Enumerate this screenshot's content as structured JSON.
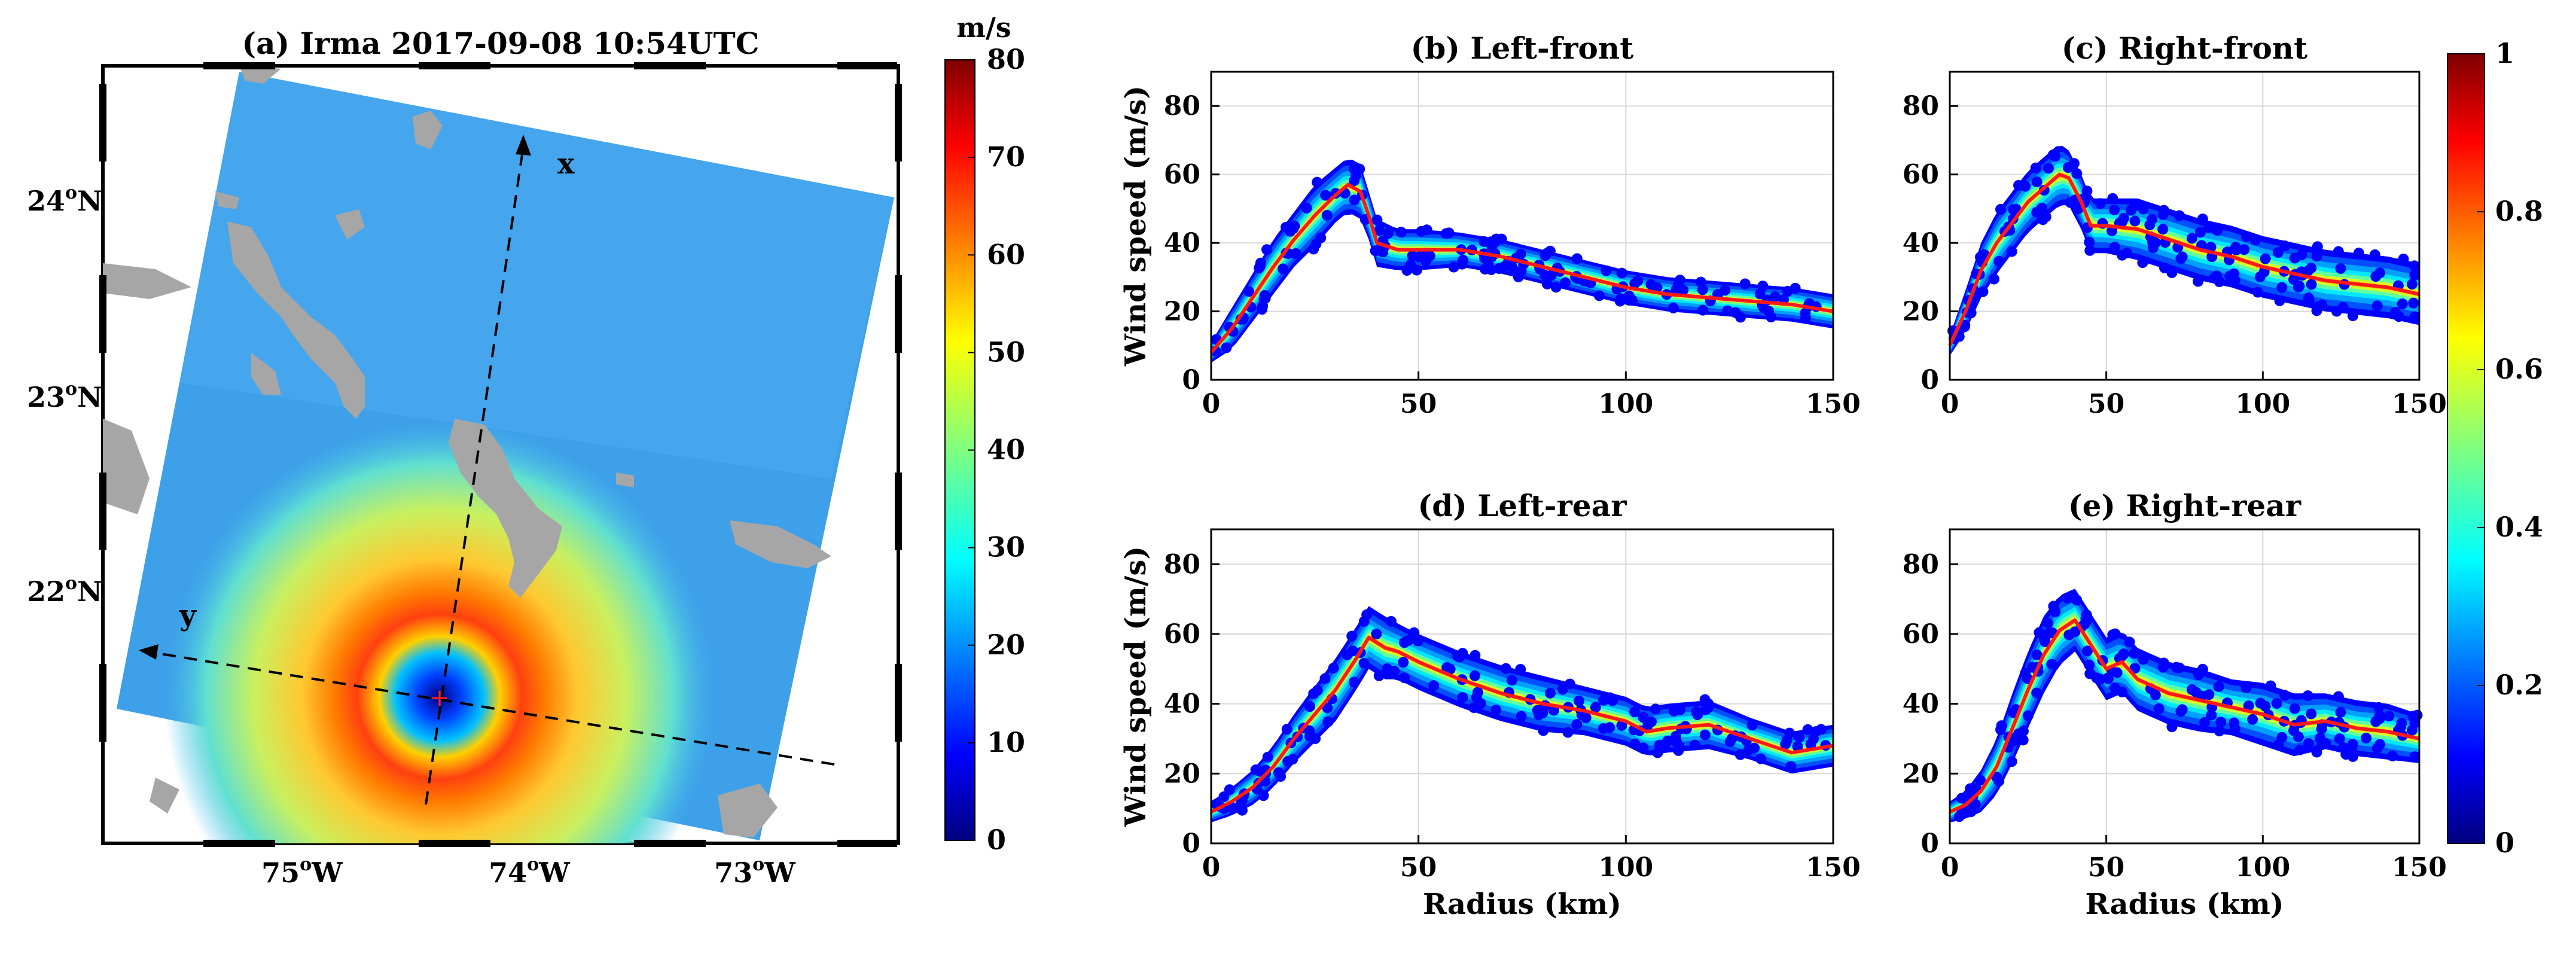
{
  "colors": {
    "jet": [
      "#00007f",
      "#0000ff",
      "#007fff",
      "#00ffff",
      "#7fff7f",
      "#ffff00",
      "#ff7f00",
      "#ff0000",
      "#7f0000"
    ],
    "mean_line": "#ff1a1a",
    "land": "#a6a6a6"
  },
  "map": {
    "title": "(a) Irma 2017-09-08 10:54UTC",
    "lat_labels": [
      {
        "deg": "24",
        "hemi": "N"
      },
      {
        "deg": "23",
        "hemi": "N"
      },
      {
        "deg": "22",
        "hemi": "N"
      }
    ],
    "lon_labels": [
      {
        "deg": "75",
        "hemi": "W"
      },
      {
        "deg": "74",
        "hemi": "W"
      },
      {
        "deg": "73",
        "hemi": "W"
      }
    ],
    "deg_symbol": "o",
    "axis_x_label": "x",
    "axis_y_label": "y",
    "colorbar": {
      "unit": "m/s",
      "ticks": [
        "0",
        "10",
        "20",
        "30",
        "40",
        "50",
        "60",
        "70",
        "80"
      ],
      "min": 0,
      "max": 80
    }
  },
  "density_colorbar": {
    "ticks": [
      "0",
      "0.2",
      "0.4",
      "0.6",
      "0.8",
      "1"
    ],
    "min": 0,
    "max": 1
  },
  "chart_data": [
    {
      "type": "scatter",
      "title": "(b) Left-front",
      "xlabel": "",
      "ylabel": "Wind speed (m/s)",
      "xlim": [
        0,
        150
      ],
      "ylim": [
        0,
        90
      ],
      "xticks": [
        "0",
        "50",
        "100",
        "150"
      ],
      "yticks": [
        "0",
        "20",
        "40",
        "60",
        "80"
      ],
      "grid": true,
      "series": [
        {
          "name": "mean",
          "x": [
            0,
            5,
            10,
            15,
            20,
            25,
            30,
            33,
            36,
            38,
            40,
            45,
            50,
            60,
            70,
            80,
            90,
            100,
            110,
            120,
            130,
            140,
            150
          ],
          "y": [
            8,
            15,
            24,
            33,
            41,
            48,
            54,
            57,
            55,
            48,
            40,
            38,
            38,
            38,
            36,
            33,
            30,
            27,
            25,
            24,
            23,
            22,
            20
          ]
        }
      ],
      "spread": [
        3,
        6,
        7,
        8,
        8,
        9,
        8,
        8,
        8,
        7,
        7,
        6,
        6,
        5,
        5,
        5,
        5,
        5,
        5,
        5,
        5,
        5,
        5
      ]
    },
    {
      "type": "scatter",
      "title": "(c) Right-front",
      "xlabel": "",
      "ylabel": "",
      "xlim": [
        0,
        150
      ],
      "ylim": [
        0,
        90
      ],
      "xticks": [
        "0",
        "50",
        "100",
        "150"
      ],
      "yticks": [
        "0",
        "20",
        "40",
        "60",
        "80"
      ],
      "grid": true,
      "series": [
        {
          "name": "mean",
          "x": [
            0,
            5,
            10,
            15,
            20,
            25,
            30,
            35,
            38,
            42,
            45,
            50,
            60,
            70,
            80,
            90,
            100,
            110,
            120,
            130,
            140,
            150
          ],
          "y": [
            10,
            20,
            32,
            40,
            46,
            52,
            56,
            60,
            59,
            52,
            45,
            45,
            44,
            41,
            38,
            36,
            33,
            31,
            29,
            28,
            27,
            25
          ]
        }
      ],
      "spread": [
        3,
        6,
        8,
        9,
        9,
        9,
        9,
        9,
        8,
        8,
        8,
        8,
        9,
        9,
        9,
        9,
        9,
        9,
        9,
        9,
        9,
        9
      ]
    },
    {
      "type": "scatter",
      "title": "(d) Left-rear",
      "xlabel": "Radius (km)",
      "ylabel": "Wind speed (m/s)",
      "xlim": [
        0,
        150
      ],
      "ylim": [
        0,
        90
      ],
      "xticks": [
        "0",
        "50",
        "100",
        "150"
      ],
      "yticks": [
        "0",
        "20",
        "40",
        "60",
        "80"
      ],
      "grid": true,
      "series": [
        {
          "name": "mean",
          "x": [
            0,
            5,
            10,
            15,
            20,
            25,
            30,
            35,
            38,
            42,
            45,
            50,
            60,
            70,
            80,
            90,
            100,
            105,
            110,
            120,
            130,
            140,
            145,
            150
          ],
          "y": [
            9,
            12,
            16,
            22,
            30,
            37,
            44,
            53,
            59,
            56,
            55,
            52,
            47,
            43,
            40,
            38,
            35,
            32,
            33,
            34,
            30,
            26,
            27,
            28
          ]
        }
      ],
      "spread": [
        3,
        4,
        5,
        6,
        7,
        8,
        9,
        9,
        9,
        9,
        8,
        8,
        8,
        8,
        8,
        7,
        7,
        7,
        7,
        7,
        6,
        6,
        6,
        6
      ]
    },
    {
      "type": "scatter",
      "title": "(e) Right-rear",
      "xlabel": "Radius (km)",
      "ylabel": "",
      "xlim": [
        0,
        150
      ],
      "ylim": [
        0,
        90
      ],
      "xticks": [
        "0",
        "50",
        "100",
        "150"
      ],
      "yticks": [
        "0",
        "20",
        "40",
        "60",
        "80"
      ],
      "grid": true,
      "series": [
        {
          "name": "mean",
          "x": [
            0,
            5,
            10,
            15,
            20,
            25,
            30,
            35,
            40,
            45,
            50,
            55,
            60,
            70,
            80,
            90,
            100,
            110,
            120,
            130,
            140,
            150
          ],
          "y": [
            9,
            11,
            15,
            22,
            33,
            44,
            54,
            61,
            64,
            57,
            50,
            52,
            47,
            43,
            41,
            39,
            37,
            34,
            35,
            33,
            32,
            30
          ]
        }
      ],
      "spread": [
        3,
        4,
        6,
        8,
        10,
        11,
        11,
        10,
        9,
        9,
        9,
        9,
        9,
        9,
        9,
        8,
        9,
        9,
        8,
        8,
        8,
        7
      ]
    }
  ]
}
